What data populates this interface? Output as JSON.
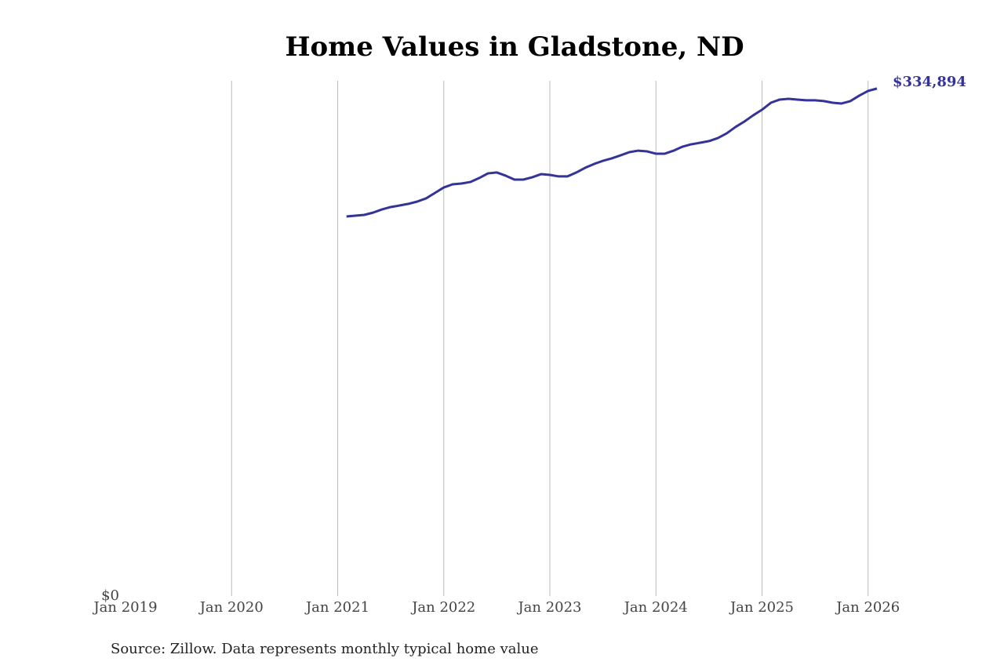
{
  "chart_data": {
    "type": "line",
    "title": "Home Values in Gladstone, ND",
    "source": "Source: Zillow. Data represents monthly typical home value",
    "x": [
      "2021-02",
      "2021-03",
      "2021-04",
      "2021-05",
      "2021-06",
      "2021-07",
      "2021-08",
      "2021-09",
      "2021-10",
      "2021-11",
      "2021-12",
      "2022-01",
      "2022-02",
      "2022-03",
      "2022-04",
      "2022-05",
      "2022-06",
      "2022-07",
      "2022-08",
      "2022-09",
      "2022-10",
      "2022-11",
      "2022-12",
      "2023-01",
      "2023-02",
      "2023-03",
      "2023-04",
      "2023-05",
      "2023-06",
      "2023-07",
      "2023-08",
      "2023-09",
      "2023-10",
      "2023-11",
      "2023-12",
      "2024-01",
      "2024-02",
      "2024-03",
      "2024-04",
      "2024-05",
      "2024-06",
      "2024-07",
      "2024-08",
      "2024-09",
      "2024-10",
      "2024-11",
      "2024-12",
      "2025-01",
      "2025-02",
      "2025-03",
      "2025-04",
      "2025-05",
      "2025-06",
      "2025-07",
      "2025-08",
      "2025-09",
      "2025-10",
      "2025-11",
      "2025-12",
      "2026-01",
      "2026-02"
    ],
    "series": [
      {
        "name": "Gladstone, ND",
        "color": "#33339a",
        "values": [
          250500,
          251000,
          251500,
          253000,
          255100,
          256700,
          257700,
          258800,
          260300,
          262400,
          266000,
          269600,
          271700,
          272200,
          273200,
          275800,
          278900,
          279500,
          277400,
          274800,
          274800,
          276300,
          278400,
          277900,
          276900,
          276900,
          279500,
          282600,
          285100,
          287200,
          288800,
          290800,
          292900,
          293900,
          293400,
          291900,
          291900,
          293900,
          296500,
          298100,
          299100,
          300200,
          302200,
          305300,
          309500,
          313100,
          317200,
          320900,
          325500,
          327600,
          328100,
          327600,
          327100,
          327100,
          326600,
          325500,
          325000,
          326600,
          330200,
          333300,
          334894
        ],
        "value_labels": [
          null,
          null,
          null,
          null,
          null,
          null,
          null,
          null,
          null,
          null,
          null,
          null,
          null,
          null,
          null,
          null,
          null,
          null,
          null,
          null,
          null,
          null,
          null,
          null,
          null,
          null,
          null,
          null,
          null,
          null,
          null,
          null,
          null,
          null,
          null,
          null,
          null,
          null,
          null,
          null,
          null,
          null,
          null,
          null,
          null,
          null,
          null,
          null,
          null,
          null,
          null,
          null,
          null,
          null,
          null,
          null,
          null,
          null,
          null,
          null,
          "$334,894"
        ]
      }
    ],
    "xlim": [
      "2019-01",
      "2026-02"
    ],
    "xticks": [
      {
        "value": "2019-01",
        "label": "Jan 2019"
      },
      {
        "value": "2020-01",
        "label": "Jan 2020"
      },
      {
        "value": "2021-01",
        "label": "Jan 2021"
      },
      {
        "value": "2022-01",
        "label": "Jan 2022"
      },
      {
        "value": "2023-01",
        "label": "Jan 2023"
      },
      {
        "value": "2024-01",
        "label": "Jan 2024"
      },
      {
        "value": "2025-01",
        "label": "Jan 2025"
      },
      {
        "value": "2026-01",
        "label": "Jan 2026"
      }
    ],
    "ylim": [
      0,
      340000
    ],
    "yticks": [
      {
        "value": 0,
        "label": "$0"
      }
    ],
    "grid": true
  }
}
